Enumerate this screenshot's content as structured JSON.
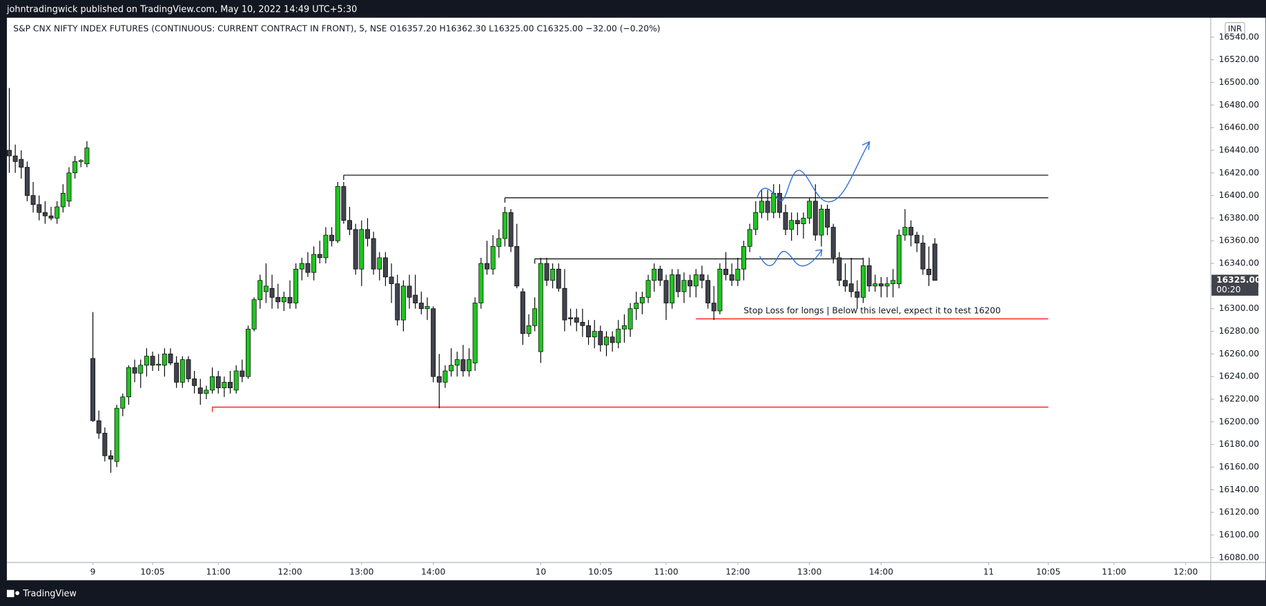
{
  "chart_data": {
    "type": "candlestick",
    "publisher": "johntradingwick published on TradingView.com, May 10, 2022 14:49 UTC+5:30",
    "title": "S&P CNX NIFTY INDEX FUTURES (CONTINUOUS: CURRENT CONTRACT IN FRONT), 5, NSE  O16357.20  H16362.30  L16325.00  C16325.00  −32.00 (−0.20%)",
    "currency": "INR",
    "brand": "TradingView",
    "up_color": "#22c322",
    "down_color": "#40434c",
    "candles": [
      [
        16440,
        16495,
        16420,
        16435
      ],
      [
        16435,
        16445,
        16420,
        16430
      ],
      [
        16432,
        16440,
        16415,
        16425
      ],
      [
        16425,
        16430,
        16395,
        16400
      ],
      [
        16400,
        16412,
        16385,
        16392
      ],
      [
        16392,
        16400,
        16378,
        16385
      ],
      [
        16385,
        16395,
        16375,
        16382
      ],
      [
        16382,
        16390,
        16378,
        16380
      ],
      [
        16380,
        16395,
        16375,
        16390
      ],
      [
        16390,
        16410,
        16385,
        16402
      ],
      [
        16395,
        16425,
        16390,
        16420
      ],
      [
        16420,
        16435,
        16415,
        16430
      ],
      [
        16430,
        16432,
        16425,
        16431
      ],
      [
        16428,
        16448,
        16425,
        16442
      ],
      [
        16256,
        16297,
        16200,
        16201
      ],
      [
        16201,
        16210,
        16185,
        16190
      ],
      [
        16190,
        16195,
        16165,
        16170
      ],
      [
        16170,
        16175,
        16155,
        16167
      ],
      [
        16165,
        16215,
        16160,
        16212
      ],
      [
        16212,
        16225,
        16205,
        16222
      ],
      [
        16222,
        16250,
        16215,
        16248
      ],
      [
        16248,
        16255,
        16235,
        16243
      ],
      [
        16243,
        16255,
        16230,
        16250
      ],
      [
        16250,
        16265,
        16240,
        16258
      ],
      [
        16258,
        16262,
        16245,
        16250
      ],
      [
        16250,
        16260,
        16245,
        16251
      ],
      [
        16250,
        16265,
        16240,
        16260
      ],
      [
        16260,
        16265,
        16250,
        16252
      ],
      [
        16252,
        16258,
        16230,
        16235
      ],
      [
        16235,
        16258,
        16230,
        16255
      ],
      [
        16255,
        16258,
        16235,
        16238
      ],
      [
        16238,
        16245,
        16225,
        16232
      ],
      [
        16230,
        16238,
        16215,
        16225
      ],
      [
        16225,
        16232,
        16220,
        16228
      ],
      [
        16228,
        16248,
        16225,
        16240
      ],
      [
        16240,
        16245,
        16225,
        16230
      ],
      [
        16230,
        16240,
        16222,
        16235
      ],
      [
        16235,
        16245,
        16225,
        16230
      ],
      [
        16228,
        16250,
        16225,
        16245
      ],
      [
        16245,
        16255,
        16235,
        16240
      ],
      [
        16240,
        16285,
        16238,
        16282
      ],
      [
        16282,
        16310,
        16280,
        16308
      ],
      [
        16308,
        16330,
        16300,
        16325
      ],
      [
        16315,
        16340,
        16305,
        16320
      ],
      [
        16318,
        16330,
        16300,
        16310
      ],
      [
        16310,
        16322,
        16300,
        16306
      ],
      [
        16306,
        16315,
        16298,
        16310
      ],
      [
        16310,
        16325,
        16300,
        16305
      ],
      [
        16305,
        16340,
        16300,
        16335
      ],
      [
        16335,
        16345,
        16325,
        16340
      ],
      [
        16340,
        16350,
        16328,
        16332
      ],
      [
        16332,
        16355,
        16325,
        16348
      ],
      [
        16348,
        16360,
        16340,
        16345
      ],
      [
        16345,
        16372,
        16340,
        16365
      ],
      [
        16365,
        16372,
        16355,
        16360
      ],
      [
        16360,
        16412,
        16358,
        16408
      ],
      [
        16408,
        16412,
        16375,
        16378
      ],
      [
        16378,
        16390,
        16365,
        16370
      ],
      [
        16370,
        16375,
        16330,
        16335
      ],
      [
        16335,
        16378,
        16320,
        16370
      ],
      [
        16370,
        16380,
        16355,
        16362
      ],
      [
        16362,
        16368,
        16330,
        16335
      ],
      [
        16335,
        16350,
        16325,
        16345
      ],
      [
        16345,
        16350,
        16320,
        16328
      ],
      [
        16328,
        16340,
        16305,
        16322
      ],
      [
        16322,
        16330,
        16285,
        16290
      ],
      [
        16290,
        16325,
        16280,
        16320
      ],
      [
        16320,
        16330,
        16300,
        16310
      ],
      [
        16312,
        16330,
        16300,
        16305
      ],
      [
        16305,
        16315,
        16295,
        16300
      ],
      [
        16300,
        16310,
        16290,
        16302
      ],
      [
        16300,
        16302,
        16235,
        16240
      ],
      [
        16240,
        16260,
        16212,
        16235
      ],
      [
        16235,
        16250,
        16230,
        16245
      ],
      [
        16245,
        16265,
        16240,
        16250
      ],
      [
        16250,
        16262,
        16240,
        16255
      ],
      [
        16255,
        16268,
        16240,
        16245
      ],
      [
        16245,
        16265,
        16240,
        16255
      ],
      [
        16252,
        16310,
        16245,
        16305
      ],
      [
        16305,
        16345,
        16300,
        16340
      ],
      [
        16340,
        16360,
        16330,
        16335
      ],
      [
        16335,
        16365,
        16330,
        16355
      ],
      [
        16355,
        16370,
        16345,
        16362
      ],
      [
        16362,
        16390,
        16355,
        16385
      ],
      [
        16385,
        16388,
        16350,
        16355
      ],
      [
        16355,
        16375,
        16318,
        16320
      ],
      [
        16315,
        16318,
        16268,
        16278
      ],
      [
        16278,
        16295,
        16275,
        16285
      ],
      [
        16285,
        16310,
        16280,
        16300
      ],
      [
        16262,
        16345,
        16252,
        16340
      ],
      [
        16340,
        16345,
        16320,
        16325
      ],
      [
        16325,
        16340,
        16318,
        16335
      ],
      [
        16335,
        16340,
        16315,
        16318
      ],
      [
        16318,
        16335,
        16280,
        16290
      ],
      [
        16292,
        16300,
        16285,
        16291
      ],
      [
        16292,
        16300,
        16280,
        16288
      ],
      [
        16288,
        16300,
        16275,
        16285
      ],
      [
        16285,
        16290,
        16268,
        16275
      ],
      [
        16275,
        16290,
        16265,
        16280
      ],
      [
        16280,
        16285,
        16262,
        16268
      ],
      [
        16268,
        16280,
        16258,
        16275
      ],
      [
        16275,
        16280,
        16262,
        16270
      ],
      [
        16270,
        16290,
        16265,
        16282
      ],
      [
        16282,
        16295,
        16270,
        16285
      ],
      [
        16282,
        16305,
        16275,
        16300
      ],
      [
        16300,
        16315,
        16290,
        16305
      ],
      [
        16305,
        16315,
        16295,
        16310
      ],
      [
        16310,
        16330,
        16305,
        16325
      ],
      [
        16325,
        16340,
        16315,
        16335
      ],
      [
        16335,
        16338,
        16320,
        16325
      ],
      [
        16325,
        16330,
        16290,
        16305
      ],
      [
        16305,
        16335,
        16300,
        16330
      ],
      [
        16330,
        16335,
        16310,
        16315
      ],
      [
        16315,
        16332,
        16305,
        16325
      ],
      [
        16325,
        16330,
        16310,
        16320
      ],
      [
        16320,
        16335,
        16310,
        16330
      ],
      [
        16330,
        16338,
        16318,
        16325
      ],
      [
        16325,
        16330,
        16300,
        16305
      ],
      [
        16305,
        16320,
        16290,
        16298
      ],
      [
        16298,
        16340,
        16295,
        16335
      ],
      [
        16335,
        16350,
        16325,
        16330
      ],
      [
        16330,
        16340,
        16320,
        16325
      ],
      [
        16325,
        16345,
        16320,
        16335
      ],
      [
        16335,
        16360,
        16325,
        16355
      ],
      [
        16355,
        16375,
        16350,
        16370
      ],
      [
        16370,
        16395,
        16365,
        16385
      ],
      [
        16385,
        16405,
        16380,
        16395
      ],
      [
        16395,
        16405,
        16378,
        16385
      ],
      [
        16385,
        16410,
        16380,
        16402
      ],
      [
        16402,
        16410,
        16380,
        16385
      ],
      [
        16385,
        16392,
        16365,
        16370
      ],
      [
        16370,
        16385,
        16360,
        16378
      ],
      [
        16378,
        16385,
        16365,
        16375
      ],
      [
        16375,
        16385,
        16362,
        16380
      ],
      [
        16380,
        16398,
        16375,
        16395
      ],
      [
        16395,
        16410,
        16360,
        16365
      ],
      [
        16365,
        16392,
        16355,
        16388
      ],
      [
        16388,
        16392,
        16365,
        16372
      ],
      [
        16372,
        16375,
        16340,
        16345
      ],
      [
        16345,
        16350,
        16320,
        16325
      ],
      [
        16325,
        16340,
        16315,
        16320
      ],
      [
        16322,
        16345,
        16310,
        16315
      ],
      [
        16315,
        16325,
        16300,
        16310
      ],
      [
        16310,
        16345,
        16305,
        16338
      ],
      [
        16338,
        16345,
        16315,
        16320
      ],
      [
        16320,
        16330,
        16315,
        16322
      ],
      [
        16322,
        16328,
        16310,
        16320
      ],
      [
        16320,
        16328,
        16310,
        16322
      ],
      [
        16322,
        16335,
        16310,
        16325
      ],
      [
        16322,
        16370,
        16318,
        16365
      ],
      [
        16365,
        16388,
        16360,
        16372
      ],
      [
        16372,
        16378,
        16355,
        16365
      ],
      [
        16365,
        16368,
        16350,
        16358
      ],
      [
        16358,
        16365,
        16330,
        16335
      ],
      [
        16335,
        16355,
        16320,
        16330
      ],
      [
        16357.2,
        16362.3,
        16325,
        16325
      ]
    ],
    "xlim": [
      -0.135,
      201.2
    ],
    "xticks": [
      {
        "value": 14,
        "label": "9"
      },
      {
        "value": 24,
        "label": "10:05"
      },
      {
        "value": 35,
        "label": "11:00"
      },
      {
        "value": 47,
        "label": "12:00"
      },
      {
        "value": 59,
        "label": "13:00"
      },
      {
        "value": 71,
        "label": "14:00"
      },
      {
        "value": 89,
        "label": "10"
      },
      {
        "value": 99,
        "label": "10:05"
      },
      {
        "value": 110,
        "label": "11:00"
      },
      {
        "value": 122,
        "label": "12:00"
      },
      {
        "value": 134,
        "label": "13:00"
      },
      {
        "value": 146,
        "label": "14:00"
      },
      {
        "value": 164,
        "label": "11"
      },
      {
        "value": 174,
        "label": "10:05"
      },
      {
        "value": 185,
        "label": "11:00"
      },
      {
        "value": 197,
        "label": "12:00"
      }
    ],
    "ylim": [
      16076.4,
      16555.7
    ],
    "yticks": [
      {
        "value": 16080,
        "label": "16080.00"
      },
      {
        "value": 16100,
        "label": "16100.00"
      },
      {
        "value": 16120,
        "label": "16120.00"
      },
      {
        "value": 16140,
        "label": "16140.00"
      },
      {
        "value": 16160,
        "label": "16160.00"
      },
      {
        "value": 16180,
        "label": "16180.00"
      },
      {
        "value": 16200,
        "label": "16200.00"
      },
      {
        "value": 16220,
        "label": "16220.00"
      },
      {
        "value": 16240,
        "label": "16240.00"
      },
      {
        "value": 16260,
        "label": "16260.00"
      },
      {
        "value": 16280,
        "label": "16280.00"
      },
      {
        "value": 16300,
        "label": "16300.00"
      },
      {
        "value": 16320,
        "label": "16320.00"
      },
      {
        "value": 16340,
        "label": "16340.00"
      },
      {
        "value": 16360,
        "label": "16360.00"
      },
      {
        "value": 16380,
        "label": "16380.00"
      },
      {
        "value": 16400,
        "label": "16400.00"
      },
      {
        "value": 16420,
        "label": "16420.00"
      },
      {
        "value": 16440,
        "label": "16440.00"
      },
      {
        "value": 16460,
        "label": "16460.00"
      },
      {
        "value": 16480,
        "label": "16480.00"
      },
      {
        "value": 16500,
        "label": "16500.00"
      },
      {
        "value": 16520,
        "label": "16520.00"
      },
      {
        "value": 16540,
        "label": "16540.00"
      }
    ],
    "last_price": {
      "value": 16325,
      "label": "16325.00"
    },
    "countdown": "00:20",
    "levels": [
      {
        "price": 16418,
        "from": 56,
        "to": 174,
        "color": "#000000"
      },
      {
        "price": 16398,
        "from": 83,
        "to": 174,
        "color": "#000000"
      },
      {
        "price": 16344,
        "from": 88,
        "to": 143,
        "color": "#000000"
      },
      {
        "price": 16291,
        "from": 115,
        "to": 174,
        "color": "#ff0000"
      },
      {
        "price": 16213,
        "from": 34,
        "to": 174,
        "color": "#ff0000"
      }
    ],
    "annotation": "Stop Loss for longs | Below this level, expect it to test 16200"
  }
}
